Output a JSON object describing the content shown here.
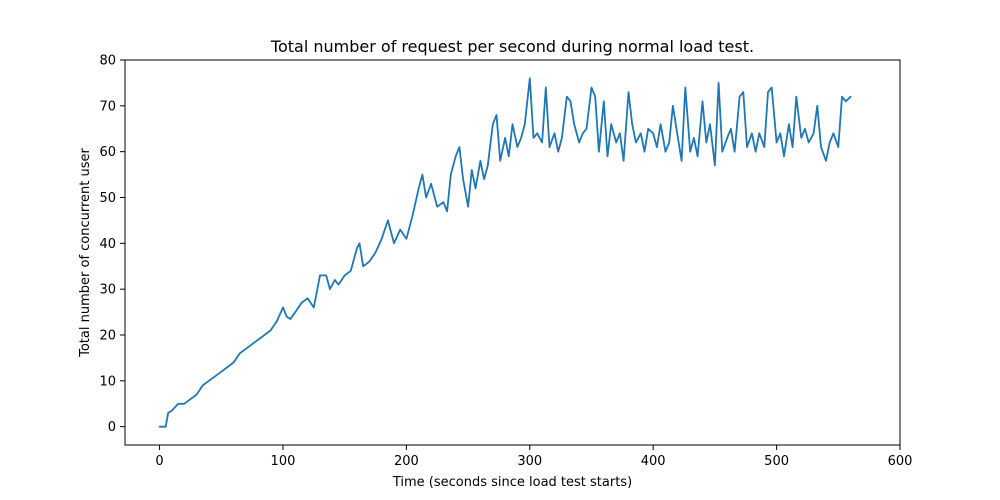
{
  "chart_data": {
    "type": "line",
    "title": "Total number of request per second during normal load test.",
    "xlabel": "Time (seconds since load test starts)",
    "ylabel": "Total number of concurrent user",
    "xlim": [
      -28,
      600
    ],
    "ylim": [
      -4,
      80
    ],
    "xticks": [
      0,
      100,
      200,
      300,
      400,
      500,
      600
    ],
    "yticks": [
      0,
      10,
      20,
      30,
      40,
      50,
      60,
      70,
      80
    ],
    "grid": false,
    "legend": "none",
    "series": [
      {
        "color": "#1f77b4",
        "x": [
          0,
          5,
          7,
          10,
          15,
          20,
          25,
          30,
          35,
          40,
          45,
          50,
          55,
          60,
          65,
          70,
          75,
          80,
          85,
          90,
          95,
          100,
          103,
          106,
          110,
          115,
          120,
          125,
          130,
          135,
          138,
          142,
          145,
          150,
          155,
          160,
          162,
          165,
          170,
          175,
          180,
          185,
          190,
          195,
          200,
          205,
          210,
          213,
          216,
          220,
          225,
          230,
          233,
          236,
          240,
          243,
          246,
          250,
          253,
          256,
          260,
          263,
          266,
          270,
          273,
          276,
          280,
          283,
          286,
          290,
          293,
          296,
          300,
          303,
          306,
          310,
          313,
          316,
          320,
          323,
          326,
          330,
          333,
          336,
          340,
          343,
          346,
          350,
          353,
          356,
          360,
          363,
          366,
          370,
          373,
          376,
          380,
          383,
          386,
          390,
          393,
          396,
          400,
          403,
          406,
          410,
          413,
          416,
          420,
          423,
          426,
          430,
          433,
          436,
          440,
          443,
          446,
          450,
          453,
          456,
          460,
          463,
          466,
          470,
          473,
          476,
          480,
          483,
          486,
          490,
          493,
          496,
          500,
          503,
          506,
          510,
          513,
          516,
          520,
          523,
          526,
          530,
          533,
          536,
          540,
          543,
          546,
          550,
          553,
          556,
          560
        ],
        "y": [
          0,
          0,
          3,
          3.5,
          5,
          5,
          6,
          7,
          9,
          10,
          11,
          12,
          13,
          14,
          16,
          17,
          18,
          19,
          20,
          21,
          23,
          26,
          24,
          23.5,
          25,
          27,
          28,
          26,
          33,
          33,
          30,
          32,
          31,
          33,
          34,
          39,
          40,
          35,
          36,
          38,
          41,
          45,
          40,
          43,
          41,
          46,
          52,
          55,
          50,
          53,
          48,
          49,
          47,
          55,
          59,
          61,
          54,
          48,
          56,
          52,
          58,
          54,
          57,
          66,
          68,
          58,
          63,
          59,
          66,
          61,
          63,
          66,
          76,
          63,
          64,
          62,
          74,
          61,
          64,
          60,
          63,
          72,
          71,
          66,
          62,
          64,
          65,
          74,
          72,
          60,
          71,
          59,
          66,
          62,
          64,
          58,
          73,
          66,
          62,
          64,
          60,
          65,
          64,
          61,
          66,
          60,
          62,
          70,
          63,
          58,
          74,
          60,
          63,
          59,
          71,
          62,
          66,
          57,
          75,
          60,
          63,
          65,
          60,
          72,
          73,
          61,
          64,
          60,
          64,
          61,
          73,
          74,
          62,
          64,
          59,
          66,
          61,
          72,
          63,
          65,
          62,
          64,
          70,
          61,
          58,
          62,
          64,
          61,
          72,
          71,
          72
        ]
      }
    ]
  }
}
